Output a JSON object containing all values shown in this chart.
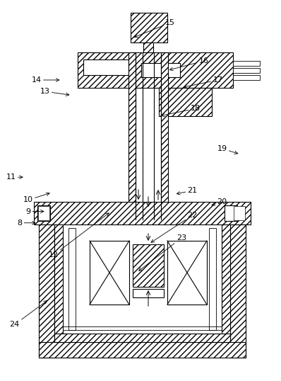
{
  "fig_width": 3.98,
  "fig_height": 5.38,
  "dpi": 100,
  "bg_color": "#ffffff",
  "lw": 0.8,
  "hatch": "////",
  "leader_data": {
    "8": {
      "lxy": [
        0.07,
        0.415
      ],
      "axy": [
        0.135,
        0.415
      ]
    },
    "9": {
      "lxy": [
        0.1,
        0.445
      ],
      "axy": [
        0.165,
        0.445
      ]
    },
    "10": {
      "lxy": [
        0.1,
        0.475
      ],
      "axy": [
        0.185,
        0.495
      ]
    },
    "11": {
      "lxy": [
        0.04,
        0.535
      ],
      "axy": [
        0.09,
        0.535
      ]
    },
    "12": {
      "lxy": [
        0.19,
        0.33
      ],
      "axy": [
        0.395,
        0.445
      ]
    },
    "13": {
      "lxy": [
        0.16,
        0.76
      ],
      "axy": [
        0.255,
        0.75
      ]
    },
    "14": {
      "lxy": [
        0.13,
        0.79
      ],
      "axy": [
        0.22,
        0.79
      ]
    },
    "15": {
      "lxy": [
        0.605,
        0.94
      ],
      "axy": [
        0.47,
        0.9
      ]
    },
    "16": {
      "lxy": [
        0.725,
        0.84
      ],
      "axy": [
        0.595,
        0.815
      ]
    },
    "17": {
      "lxy": [
        0.775,
        0.79
      ],
      "axy": [
        0.645,
        0.77
      ]
    },
    "18": {
      "lxy": [
        0.695,
        0.715
      ],
      "axy": [
        0.565,
        0.695
      ]
    },
    "19": {
      "lxy": [
        0.79,
        0.61
      ],
      "axy": [
        0.855,
        0.595
      ]
    },
    "20": {
      "lxy": [
        0.79,
        0.47
      ],
      "axy": [
        0.745,
        0.46
      ]
    },
    "21": {
      "lxy": [
        0.685,
        0.5
      ],
      "axy": [
        0.62,
        0.49
      ]
    },
    "22": {
      "lxy": [
        0.685,
        0.435
      ],
      "axy": [
        0.53,
        0.36
      ]
    },
    "23": {
      "lxy": [
        0.645,
        0.375
      ],
      "axy": [
        0.487,
        0.285
      ]
    },
    "24": {
      "lxy": [
        0.052,
        0.148
      ],
      "axy": [
        0.175,
        0.215
      ]
    }
  }
}
